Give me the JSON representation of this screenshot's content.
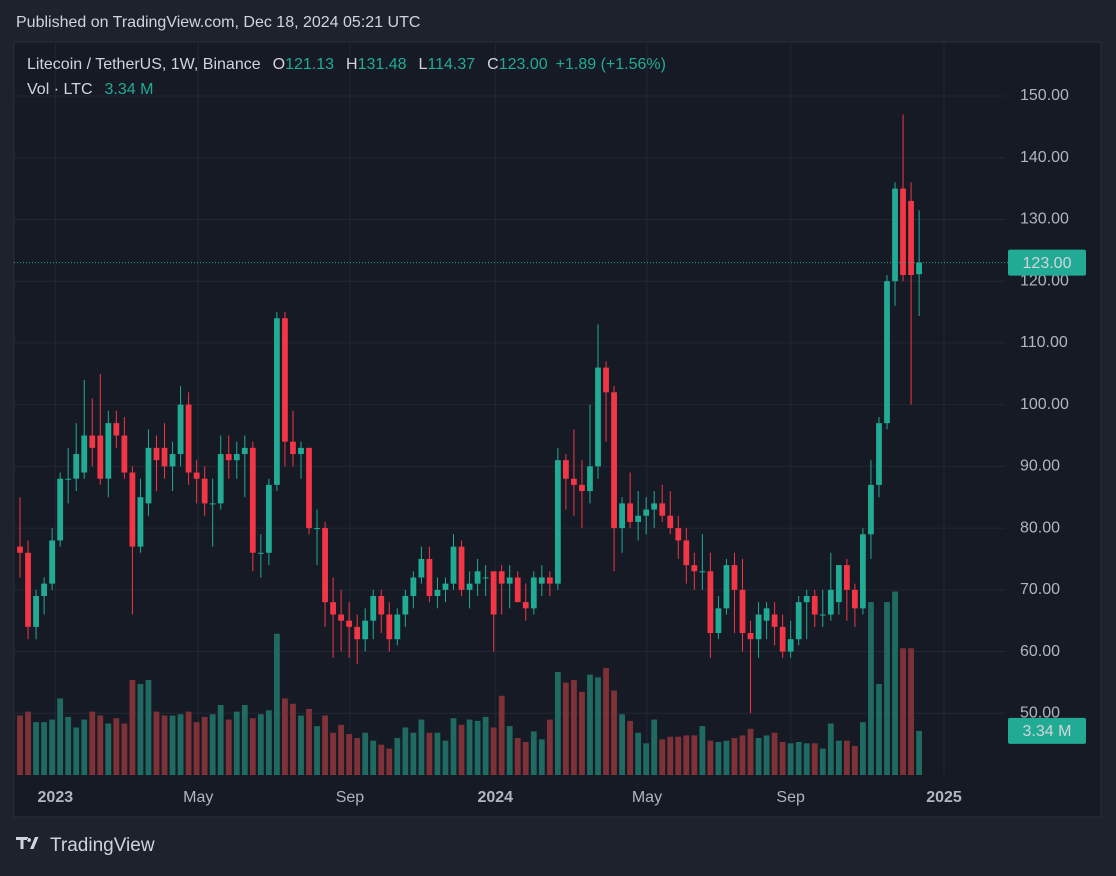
{
  "published": "Published on TradingView.com, Dec 18, 2024 05:21 UTC",
  "brand": "TradingView",
  "chart_data": {
    "type": "candlestick",
    "title": "Litecoin / TetherUS, 1W, Binance",
    "ohlc_labels": [
      {
        "key": "O",
        "value": "121.13"
      },
      {
        "key": "H",
        "value": "131.48"
      },
      {
        "key": "L",
        "value": "114.37"
      },
      {
        "key": "C",
        "value": "123.00"
      }
    ],
    "change": "+1.89 (+1.56%)",
    "volume_label": "Vol · LTC",
    "volume_value": "3.34 M",
    "price_badge": "123.00",
    "volume_badge": "3.34 M",
    "up_color": "#22ab94",
    "down_color": "#f23645",
    "volume_up_color": "#1f6b62",
    "volume_down_color": "#7e3237",
    "open": [
      77,
      76,
      64,
      69,
      71,
      78,
      88,
      88,
      89,
      95,
      95,
      88,
      97,
      95,
      89,
      77,
      84,
      93,
      93,
      90,
      92,
      100,
      89,
      88,
      84,
      84,
      92,
      91,
      92,
      93,
      76,
      76,
      87,
      114,
      94,
      92,
      93,
      80,
      80,
      68,
      66,
      65,
      64,
      62,
      65,
      69,
      66,
      62,
      66,
      69,
      72,
      75,
      69,
      70,
      71,
      77,
      70,
      71,
      72,
      73,
      73,
      71,
      72,
      68,
      67,
      71,
      72,
      71,
      91,
      88,
      87,
      86,
      90,
      106,
      102,
      80,
      84,
      81,
      82,
      83,
      84,
      82,
      80,
      78,
      74,
      73,
      73,
      63,
      67,
      74,
      70,
      63,
      62,
      65,
      66,
      64,
      60,
      62,
      68,
      69,
      66,
      66,
      68,
      74,
      70,
      67,
      79,
      87,
      97,
      120,
      135,
      133,
      121.13
    ],
    "high": [
      85,
      78,
      70,
      72,
      80,
      89,
      93,
      97,
      104,
      101,
      105,
      99,
      99,
      98,
      90,
      88,
      96,
      95,
      97,
      94,
      103,
      102,
      91,
      90,
      88,
      95,
      95,
      94,
      95,
      94,
      79,
      88,
      115,
      115,
      99,
      94,
      93,
      83,
      81,
      72,
      70,
      68,
      66,
      67,
      70,
      70,
      68,
      67,
      70,
      73,
      77,
      77,
      72,
      72,
      79,
      78,
      73,
      75,
      74,
      73,
      74,
      74,
      73,
      71,
      73,
      74,
      73,
      93,
      92,
      96,
      91,
      100,
      113,
      107,
      103,
      85,
      89,
      86,
      85,
      86,
      87,
      86,
      82,
      80,
      76,
      79,
      76,
      69,
      75,
      76,
      75,
      65,
      68,
      68,
      68,
      66,
      65,
      69,
      70,
      70,
      70,
      76,
      74,
      75,
      71,
      80,
      91,
      98,
      121,
      136,
      147,
      136,
      131.48
    ],
    "low": [
      72,
      62,
      62,
      66,
      70,
      77,
      84,
      86,
      88,
      90,
      87,
      85,
      93,
      88,
      66,
      76,
      82,
      86,
      88,
      86,
      90,
      87,
      84,
      82,
      77,
      83,
      88,
      88,
      85,
      73,
      72,
      74,
      86,
      90,
      90,
      88,
      79,
      74,
      64,
      59,
      60,
      59,
      58,
      60,
      62,
      63,
      60,
      61,
      64,
      67,
      71,
      68,
      67,
      68,
      70,
      69,
      67,
      69,
      69,
      60,
      66,
      67,
      68,
      65,
      66,
      69,
      69,
      70,
      83,
      82,
      80,
      84,
      88,
      94,
      73,
      76,
      80,
      78,
      79,
      80,
      81,
      79,
      75,
      71,
      70,
      70,
      59,
      62,
      66,
      63,
      60,
      50,
      59,
      62,
      61,
      59,
      59,
      61,
      62,
      64,
      64,
      65,
      66,
      65,
      64,
      66,
      75,
      85,
      96,
      116,
      120,
      100,
      114.37
    ],
    "close": [
      76,
      64,
      69,
      71,
      78,
      88,
      88,
      92,
      95,
      93,
      88,
      97,
      95,
      89,
      77,
      85,
      93,
      91,
      90,
      92,
      100,
      89,
      88,
      84,
      84,
      92,
      91,
      92,
      93,
      76,
      76,
      87,
      114,
      94,
      92,
      93,
      80,
      80,
      68,
      66,
      65,
      64,
      62,
      65,
      69,
      66,
      62,
      66,
      69,
      72,
      75,
      69,
      70,
      71,
      77,
      70,
      71,
      73,
      72,
      66,
      71,
      72,
      68,
      67,
      72,
      72,
      71,
      91,
      88,
      87,
      86,
      90,
      106,
      102,
      80,
      84,
      81,
      82,
      83,
      84,
      82,
      80,
      78,
      74,
      73,
      73,
      63,
      67,
      74,
      70,
      63,
      62,
      66,
      67,
      64,
      60,
      62,
      68,
      69,
      66,
      66,
      70,
      74,
      70,
      67,
      79,
      87,
      97,
      120,
      135,
      121,
      121,
      123.0
    ],
    "volume": [
      4.5,
      4.8,
      4.0,
      4.0,
      4.2,
      5.8,
      4.4,
      3.6,
      4.2,
      4.8,
      4.5,
      3.9,
      4.3,
      3.9,
      7.2,
      6.9,
      7.2,
      4.8,
      4.5,
      4.5,
      4.6,
      4.8,
      4.0,
      4.4,
      4.6,
      5.3,
      4.2,
      4.8,
      5.3,
      4.3,
      4.6,
      4.9,
      10.7,
      5.8,
      5.4,
      4.5,
      5.0,
      3.7,
      4.5,
      3.2,
      3.8,
      3.1,
      2.8,
      3.2,
      2.6,
      2.3,
      2.0,
      2.8,
      3.6,
      3.2,
      4.2,
      3.2,
      3.2,
      2.6,
      4.3,
      3.8,
      4.2,
      4.1,
      4.4,
      3.6,
      6.0,
      3.7,
      2.8,
      2.5,
      3.3,
      2.7,
      4.2,
      7.8,
      7.0,
      7.2,
      6.3,
      7.6,
      7.4,
      8.1,
      6.4,
      4.6,
      4.1,
      3.2,
      2.4,
      4.2,
      2.7,
      2.9,
      2.9,
      3.0,
      3.0,
      3.7,
      2.6,
      2.5,
      2.6,
      2.8,
      3.0,
      3.5,
      2.8,
      3.0,
      3.2,
      2.5,
      2.4,
      2.5,
      2.4,
      2.4,
      2.0,
      3.9,
      2.6,
      2.6,
      2.2,
      4.0,
      13.1,
      6.9,
      13.1,
      13.9,
      9.6,
      9.6,
      3.34
    ],
    "ylim": [
      40,
      158.75
    ],
    "yticks": [
      {
        "value": 50,
        "label": "50.00"
      },
      {
        "value": 60,
        "label": "60.00"
      },
      {
        "value": 70,
        "label": "70.00"
      },
      {
        "value": 80,
        "label": "80.00"
      },
      {
        "value": 90,
        "label": "90.00"
      },
      {
        "value": 100,
        "label": "100.00"
      },
      {
        "value": 110,
        "label": "110.00"
      },
      {
        "value": 120,
        "label": "120.00"
      },
      {
        "value": 130,
        "label": "130.00"
      },
      {
        "value": 140,
        "label": "140.00"
      },
      {
        "value": 150,
        "label": "150.00"
      }
    ],
    "y2lim": [
      0,
      20
    ],
    "xlim": [
      -0.75,
      122.7
    ],
    "xticks": [
      {
        "value": 4.4,
        "label": "2023"
      },
      {
        "value": 22.2,
        "label": "May"
      },
      {
        "value": 41.1,
        "label": "Sep"
      },
      {
        "value": 59.2,
        "label": "2024"
      },
      {
        "value": 78.1,
        "label": "May"
      },
      {
        "value": 96.0,
        "label": "Sep"
      },
      {
        "value": 115.1,
        "label": "2025"
      }
    ],
    "grid": true
  }
}
